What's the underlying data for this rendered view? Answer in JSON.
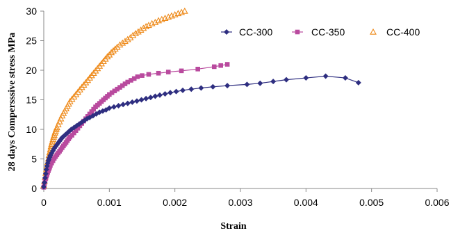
{
  "chart_data": {
    "type": "line",
    "title": "",
    "xlabel": "Strain",
    "ylabel": "28 days Compersssive stress MPa",
    "xlim": [
      0,
      0.006
    ],
    "ylim": [
      0,
      30
    ],
    "x_ticks": [
      0,
      0.001,
      0.002,
      0.003,
      0.004,
      0.005,
      0.006
    ],
    "x_tick_labels": [
      "0",
      "0.001",
      "0.002",
      "0.003",
      "0.004",
      "0.005",
      "0.006"
    ],
    "y_ticks": [
      0,
      5,
      10,
      15,
      20,
      25,
      30
    ],
    "y_tick_labels": [
      "0",
      "5",
      "10",
      "15",
      "20",
      "25",
      "30"
    ],
    "grid": false,
    "legend_position": "top-right",
    "series": [
      {
        "name": "CC-300",
        "color": "#2e2e80",
        "marker": "diamond",
        "line": true,
        "points": [
          [
            0,
            0.3
          ],
          [
            1e-05,
            1.0
          ],
          [
            2e-05,
            1.8
          ],
          [
            3e-05,
            2.5
          ],
          [
            4e-05,
            3.2
          ],
          [
            5e-05,
            3.8
          ],
          [
            6e-05,
            4.3
          ],
          [
            7e-05,
            4.7
          ],
          [
            8e-05,
            5.0
          ],
          [
            9e-05,
            5.3
          ],
          [
            0.0001,
            5.6
          ],
          [
            0.00012,
            6.0
          ],
          [
            0.00014,
            6.4
          ],
          [
            0.00016,
            6.8
          ],
          [
            0.00018,
            7.1
          ],
          [
            0.0002,
            7.4
          ],
          [
            0.00022,
            7.7
          ],
          [
            0.00024,
            8.0
          ],
          [
            0.00026,
            8.3
          ],
          [
            0.00028,
            8.6
          ],
          [
            0.0003,
            8.8
          ],
          [
            0.00033,
            9.1
          ],
          [
            0.00036,
            9.4
          ],
          [
            0.00039,
            9.7
          ],
          [
            0.00042,
            10.0
          ],
          [
            0.00046,
            10.3
          ],
          [
            0.0005,
            10.6
          ],
          [
            0.00054,
            10.9
          ],
          [
            0.00058,
            11.2
          ],
          [
            0.00062,
            11.5
          ],
          [
            0.00066,
            11.8
          ],
          [
            0.0007,
            12.0
          ],
          [
            0.00075,
            12.3
          ],
          [
            0.0008,
            12.6
          ],
          [
            0.00085,
            12.9
          ],
          [
            0.0009,
            13.1
          ],
          [
            0.00095,
            13.3
          ],
          [
            0.001,
            13.6
          ],
          [
            0.00107,
            13.8
          ],
          [
            0.00114,
            14.0
          ],
          [
            0.00121,
            14.2
          ],
          [
            0.00128,
            14.4
          ],
          [
            0.00135,
            14.6
          ],
          [
            0.00142,
            14.8
          ],
          [
            0.00149,
            15.0
          ],
          [
            0.00156,
            15.2
          ],
          [
            0.00163,
            15.4
          ],
          [
            0.0017,
            15.6
          ],
          [
            0.00177,
            15.8
          ],
          [
            0.00185,
            16.0
          ],
          [
            0.00193,
            16.2
          ],
          [
            0.00202,
            16.4
          ],
          [
            0.00212,
            16.6
          ],
          [
            0.00225,
            16.8
          ],
          [
            0.0024,
            17.0
          ],
          [
            0.00258,
            17.2
          ],
          [
            0.0028,
            17.4
          ],
          [
            0.0031,
            17.6
          ],
          [
            0.0033,
            17.8
          ],
          [
            0.0035,
            18.1
          ],
          [
            0.0037,
            18.4
          ],
          [
            0.004,
            18.7
          ],
          [
            0.0043,
            19.0
          ],
          [
            0.0046,
            18.7
          ],
          [
            0.0048,
            17.9
          ]
        ]
      },
      {
        "name": "CC-350",
        "color": "#b94a9e",
        "marker": "square",
        "line": true,
        "points": [
          [
            0,
            0.2
          ],
          [
            1e-05,
            0.8
          ],
          [
            2e-05,
            1.3
          ],
          [
            3e-05,
            1.7
          ],
          [
            4e-05,
            2.1
          ],
          [
            5e-05,
            2.4
          ],
          [
            6e-05,
            2.7
          ],
          [
            7e-05,
            3.0
          ],
          [
            8e-05,
            3.3
          ],
          [
            9e-05,
            3.6
          ],
          [
            0.0001,
            3.9
          ],
          [
            0.00012,
            4.3
          ],
          [
            0.00014,
            4.7
          ],
          [
            0.00016,
            5.1
          ],
          [
            0.00018,
            5.4
          ],
          [
            0.0002,
            5.7
          ],
          [
            0.00022,
            6.0
          ],
          [
            0.00024,
            6.3
          ],
          [
            0.00026,
            6.6
          ],
          [
            0.00028,
            6.9
          ],
          [
            0.0003,
            7.2
          ],
          [
            0.00032,
            7.5
          ],
          [
            0.00034,
            7.8
          ],
          [
            0.00036,
            8.1
          ],
          [
            0.00038,
            8.4
          ],
          [
            0.0004,
            8.7
          ],
          [
            0.00043,
            9.0
          ],
          [
            0.00046,
            9.4
          ],
          [
            0.00049,
            9.8
          ],
          [
            0.00052,
            10.2
          ],
          [
            0.00055,
            10.6
          ],
          [
            0.00058,
            11.0
          ],
          [
            0.00061,
            11.4
          ],
          [
            0.00064,
            11.8
          ],
          [
            0.00067,
            12.2
          ],
          [
            0.0007,
            12.6
          ],
          [
            0.00073,
            13.0
          ],
          [
            0.00076,
            13.4
          ],
          [
            0.00079,
            13.8
          ],
          [
            0.00082,
            14.1
          ],
          [
            0.00085,
            14.4
          ],
          [
            0.00088,
            14.7
          ],
          [
            0.00091,
            15.0
          ],
          [
            0.00094,
            15.3
          ],
          [
            0.00097,
            15.6
          ],
          [
            0.001,
            15.9
          ],
          [
            0.00104,
            16.2
          ],
          [
            0.00108,
            16.5
          ],
          [
            0.00112,
            16.8
          ],
          [
            0.00116,
            17.1
          ],
          [
            0.0012,
            17.4
          ],
          [
            0.00124,
            17.7
          ],
          [
            0.00128,
            18.0
          ],
          [
            0.00133,
            18.3
          ],
          [
            0.00138,
            18.6
          ],
          [
            0.00143,
            18.9
          ],
          [
            0.0015,
            19.1
          ],
          [
            0.0016,
            19.3
          ],
          [
            0.00175,
            19.5
          ],
          [
            0.0019,
            19.7
          ],
          [
            0.0021,
            19.9
          ],
          [
            0.00235,
            20.2
          ],
          [
            0.0026,
            20.6
          ],
          [
            0.0027,
            20.8
          ],
          [
            0.0028,
            21.0
          ]
        ]
      },
      {
        "name": "CC-400",
        "color": "#ee8a1a",
        "marker": "triangle",
        "line": false,
        "points": [
          [
            0,
            0.5
          ],
          [
            1e-05,
            1.2
          ],
          [
            2e-05,
            1.9
          ],
          [
            3e-05,
            2.6
          ],
          [
            4e-05,
            3.2
          ],
          [
            5e-05,
            3.8
          ],
          [
            6e-05,
            4.4
          ],
          [
            7e-05,
            5.0
          ],
          [
            8e-05,
            5.6
          ],
          [
            9e-05,
            6.1
          ],
          [
            0.0001,
            6.6
          ],
          [
            0.00011,
            7.1
          ],
          [
            0.00012,
            7.5
          ],
          [
            0.00013,
            7.9
          ],
          [
            0.00014,
            8.3
          ],
          [
            0.00015,
            8.7
          ],
          [
            0.00016,
            9.0
          ],
          [
            0.00017,
            9.4
          ],
          [
            0.00018,
            9.7
          ],
          [
            0.00019,
            10.0
          ],
          [
            0.0002,
            10.3
          ],
          [
            0.00022,
            10.8
          ],
          [
            0.00024,
            11.3
          ],
          [
            0.00026,
            11.8
          ],
          [
            0.00028,
            12.3
          ],
          [
            0.0003,
            12.7
          ],
          [
            0.00032,
            13.1
          ],
          [
            0.00034,
            13.5
          ],
          [
            0.00036,
            13.9
          ],
          [
            0.00038,
            14.3
          ],
          [
            0.0004,
            14.7
          ],
          [
            0.00043,
            15.1
          ],
          [
            0.00046,
            15.5
          ],
          [
            0.00049,
            15.9
          ],
          [
            0.00052,
            16.3
          ],
          [
            0.00055,
            16.7
          ],
          [
            0.00058,
            17.1
          ],
          [
            0.00061,
            17.5
          ],
          [
            0.00064,
            17.9
          ],
          [
            0.00067,
            18.3
          ],
          [
            0.0007,
            18.7
          ],
          [
            0.00073,
            19.1
          ],
          [
            0.00076,
            19.5
          ],
          [
            0.00079,
            19.9
          ],
          [
            0.00082,
            20.3
          ],
          [
            0.00085,
            20.7
          ],
          [
            0.00088,
            21.1
          ],
          [
            0.00091,
            21.5
          ],
          [
            0.00094,
            21.9
          ],
          [
            0.00097,
            22.3
          ],
          [
            0.001,
            22.6
          ],
          [
            0.00103,
            23.0
          ],
          [
            0.00106,
            23.3
          ],
          [
            0.00109,
            23.6
          ],
          [
            0.00112,
            23.9
          ],
          [
            0.00116,
            24.3
          ],
          [
            0.0012,
            24.6
          ],
          [
            0.00124,
            24.9
          ],
          [
            0.00128,
            25.2
          ],
          [
            0.00132,
            25.5
          ],
          [
            0.00136,
            25.9
          ],
          [
            0.0014,
            26.2
          ],
          [
            0.00144,
            26.5
          ],
          [
            0.00148,
            26.8
          ],
          [
            0.00152,
            27.1
          ],
          [
            0.00156,
            27.4
          ],
          [
            0.0016,
            27.6
          ],
          [
            0.00165,
            27.9
          ],
          [
            0.0017,
            28.1
          ],
          [
            0.00175,
            28.4
          ],
          [
            0.0018,
            28.6
          ],
          [
            0.00185,
            28.8
          ],
          [
            0.0019,
            29.0
          ],
          [
            0.00195,
            29.2
          ],
          [
            0.002,
            29.4
          ],
          [
            0.00205,
            29.6
          ],
          [
            0.0021,
            29.8
          ],
          [
            0.00215,
            30.0
          ],
          [
            0.0022,
            30.2
          ]
        ]
      }
    ]
  }
}
